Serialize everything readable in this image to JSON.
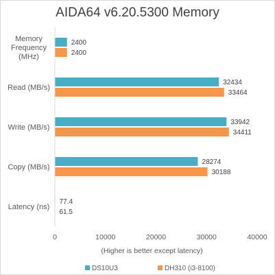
{
  "chart_data": {
    "type": "bar",
    "orientation": "horizontal",
    "title": "AIDA64 v6.20.5300 Memory",
    "xlabel": "(Higher is better except latency)",
    "ylabel": "",
    "categories": [
      "Memory Frequency (MHz)",
      "Read (MB/s)",
      "Write (MB/s)",
      "Copy (MB/s)",
      "Latency (ns)"
    ],
    "category_lines": [
      [
        "Memory",
        "Frequency",
        "(MHz)"
      ],
      [
        "Read (MB/s)"
      ],
      [
        "Write (MB/s)"
      ],
      [
        "Copy (MB/s)"
      ],
      [
        "Latency (ns)"
      ]
    ],
    "series": [
      {
        "name": "DS10U3",
        "color": "#4bacc6",
        "values": [
          2400,
          32434,
          33942,
          28274,
          77.4
        ]
      },
      {
        "name": "DH310 (i3-8100)",
        "color": "#f79646",
        "values": [
          2400,
          33464,
          34411,
          30188,
          61.5
        ]
      }
    ],
    "value_labels": [
      [
        "2400",
        "32434",
        "33942",
        "28274",
        "77.4"
      ],
      [
        "2400",
        "33464",
        "34411",
        "30188",
        "61.5"
      ]
    ],
    "xlim": [
      0,
      40000
    ],
    "xticks": [
      0,
      10000,
      20000,
      30000,
      40000
    ],
    "grid": false,
    "legend_position": "bottom"
  }
}
